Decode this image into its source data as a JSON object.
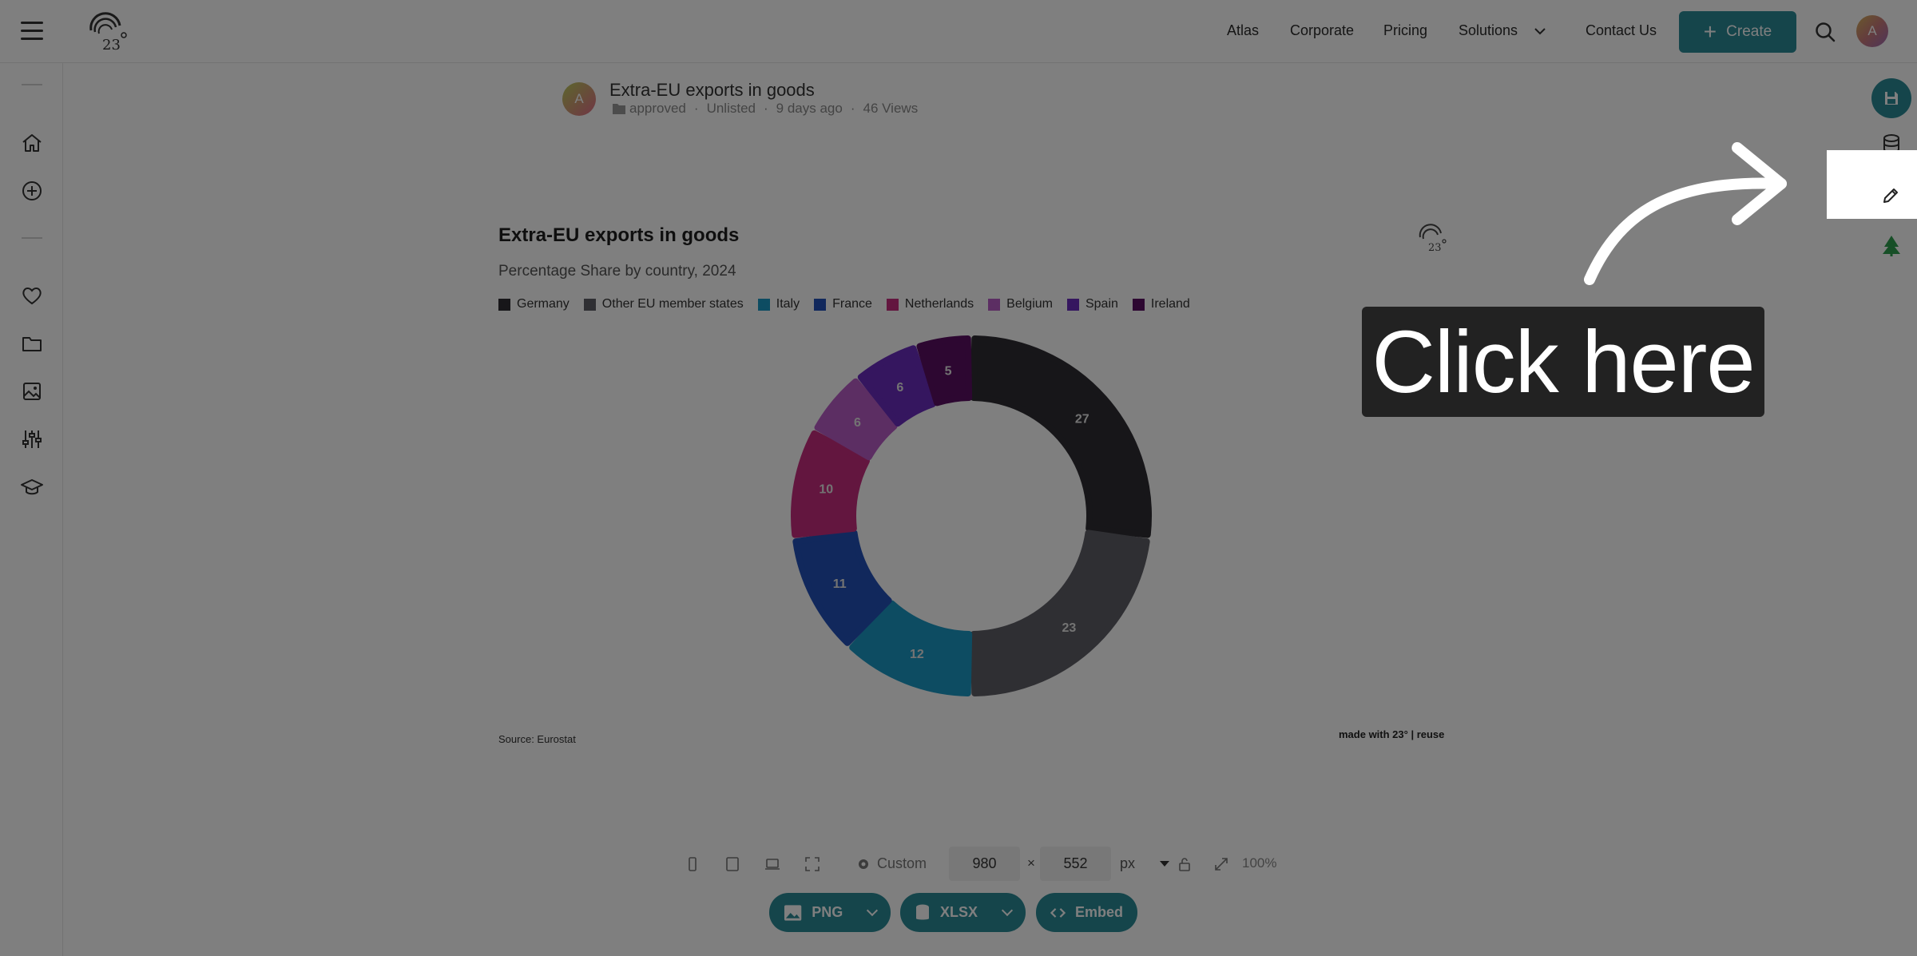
{
  "nav": {
    "links": [
      "Atlas",
      "Corporate",
      "Pricing",
      "Solutions",
      "Contact Us"
    ],
    "create_label": "Create",
    "avatar_initial": "A"
  },
  "chart_header": {
    "avatar_initial": "A",
    "title": "Extra-EU exports in goods",
    "status": "approved",
    "visibility": "Unlisted",
    "age": "9 days ago",
    "views": "46 Views"
  },
  "card": {
    "title": "Extra-EU exports in goods",
    "subtitle": "Percentage Share by country, 2024",
    "source": "Source: Eurostat",
    "made_with": "made with 23° | reuse"
  },
  "chart_data": {
    "type": "pie",
    "title": "Extra-EU exports in goods",
    "subtitle": "Percentage Share by country, 2024",
    "legend_position": "top-left",
    "categories": [
      "Germany",
      "Other EU member states",
      "Italy",
      "France",
      "Netherlands",
      "Belgium",
      "Spain",
      "Ireland"
    ],
    "values": [
      27,
      23,
      12,
      11,
      10,
      6,
      6,
      5
    ],
    "colors": [
      "#2e2d33",
      "#5f5f66",
      "#1b98c4",
      "#2251b8",
      "#c72c7f",
      "#b85cc6",
      "#6a2cbf",
      "#5a0f63"
    ]
  },
  "controls": {
    "preset_label": "Custom",
    "width": "980",
    "height": "552",
    "unit": "px",
    "zoom": "100%",
    "png_label": "PNG",
    "xlsx_label": "XLSX",
    "embed_label": "Embed"
  },
  "overlay": {
    "cta_text": "Click here"
  },
  "colors": {
    "accent": "#2a8a96"
  }
}
